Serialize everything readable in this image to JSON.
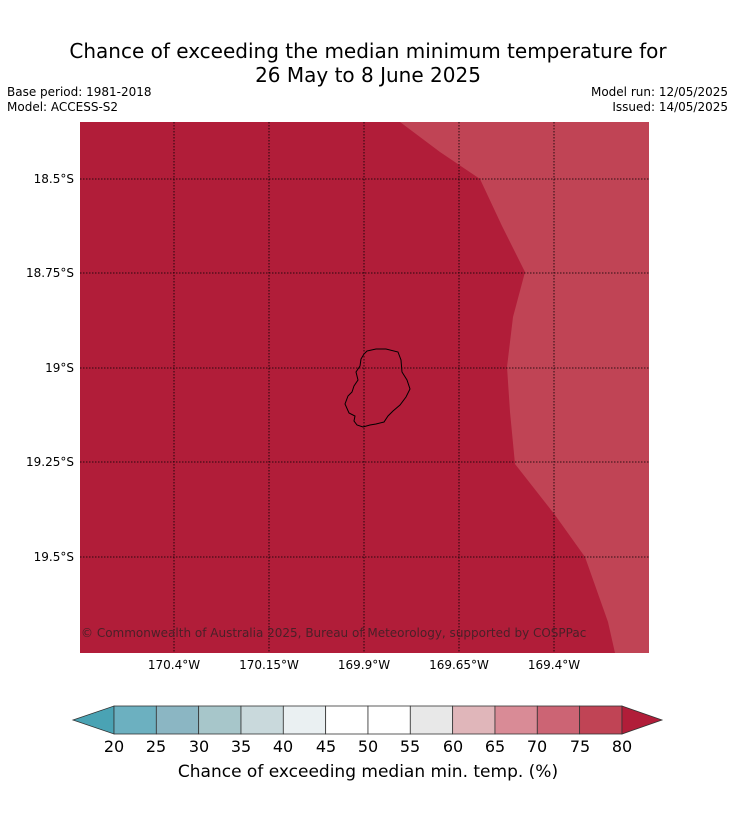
{
  "title": {
    "line1": "Chance of exceeding the median minimum temperature for",
    "line2": "26 May to 8 June 2025"
  },
  "meta": {
    "base_period": "Base period: 1981-2018",
    "model": "Model: ACCESS-S2",
    "model_run": "Model run: 12/05/2025",
    "issued": "Issued: 14/05/2025"
  },
  "map": {
    "lat_labels": [
      "18.5°S",
      "18.75°S",
      "19°S",
      "19.25°S",
      "19.5°S"
    ],
    "lon_labels": [
      "170.4°W",
      "170.15°W",
      "169.9°W",
      "169.65°W",
      "169.4°W"
    ],
    "copyright": "© Commonwealth of Australia 2025, Bureau of Meteorology, supported by COSPPac",
    "region_colors": {
      "above_80": "#b11d39",
      "75_80": "#c04455"
    }
  },
  "colorbar": {
    "ticks": [
      "20",
      "25",
      "30",
      "35",
      "40",
      "45",
      "50",
      "55",
      "60",
      "65",
      "70",
      "75",
      "80"
    ],
    "colors": [
      "#4aa3b4",
      "#6cb0c0",
      "#8bb6c3",
      "#a7c6ca",
      "#c9d9dc",
      "#eaf0f2",
      "#ffffff",
      "#ffffff",
      "#e8e8e8",
      "#e0b6ba",
      "#d98b96",
      "#cc6474",
      "#c04455",
      "#b11d39"
    ],
    "label": "Chance of exceeding median min. temp. (%)"
  }
}
